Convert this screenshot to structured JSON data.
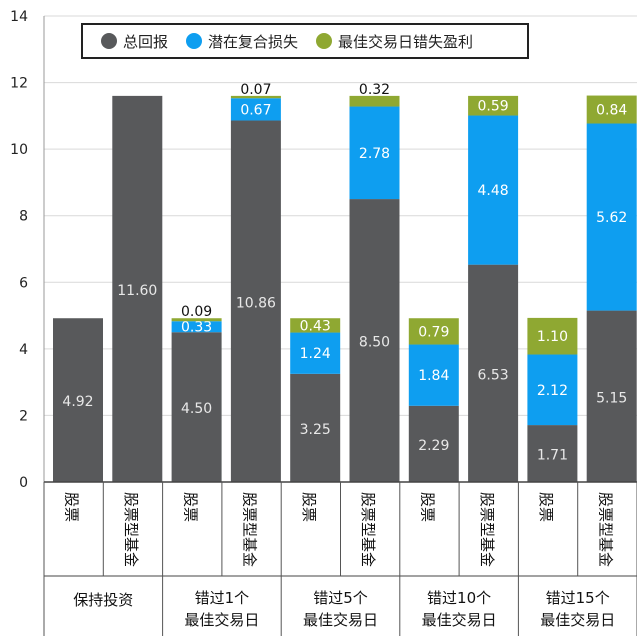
{
  "chart_data": {
    "type": "bar",
    "stacked": true,
    "ylim": [
      0,
      14
    ],
    "yticks": [
      0,
      2,
      4,
      6,
      8,
      10,
      12,
      14
    ],
    "grid": true,
    "legend_position": "top",
    "categories": [
      "股票",
      "股票型基金",
      "股票",
      "股票型基金",
      "股票",
      "股票型基金",
      "股票",
      "股票型基金",
      "股票",
      "股票型基金"
    ],
    "groups": [
      {
        "label": [
          "保持投资"
        ],
        "span": [
          0,
          1
        ]
      },
      {
        "label": [
          "错过1个",
          "最佳交易日"
        ],
        "span": [
          2,
          3
        ]
      },
      {
        "label": [
          "错过5个",
          "最佳交易日"
        ],
        "span": [
          4,
          5
        ]
      },
      {
        "label": [
          "错过10个",
          "最佳交易日"
        ],
        "span": [
          6,
          7
        ]
      },
      {
        "label": [
          "错过15个",
          "最佳交易日"
        ],
        "span": [
          8,
          9
        ]
      }
    ],
    "series": [
      {
        "name": "总回报",
        "color": "#58595b",
        "values": [
          4.92,
          11.6,
          4.5,
          10.86,
          3.25,
          8.5,
          2.29,
          6.53,
          1.71,
          5.15
        ]
      },
      {
        "name": "潜在复合损失",
        "color": "#0e9ef0",
        "values": [
          null,
          null,
          0.33,
          0.67,
          1.24,
          2.78,
          1.84,
          4.48,
          2.12,
          5.62
        ]
      },
      {
        "name": "最佳交易日错失盈利",
        "color": "#8fa832",
        "values": [
          null,
          null,
          0.09,
          0.07,
          0.43,
          0.32,
          0.79,
          0.59,
          1.1,
          0.84
        ]
      }
    ],
    "value_labels": [
      [
        "4.92",
        "11.60",
        "4.50",
        "10.86",
        "3.25",
        "8.50",
        "2.29",
        "6.53",
        "1.71",
        "5.15"
      ],
      [
        "",
        "",
        "0.33",
        "0.67",
        "1.24",
        "2.78",
        "1.84",
        "4.48",
        "2.12",
        "5.62"
      ],
      [
        "",
        "",
        "0.09",
        "0.07",
        "0.43",
        "0.32",
        "0.79",
        "0.59",
        "1.10",
        "0.84"
      ]
    ],
    "top_labels": [
      false,
      false,
      true,
      true,
      false,
      true,
      false,
      false,
      false,
      false
    ]
  }
}
